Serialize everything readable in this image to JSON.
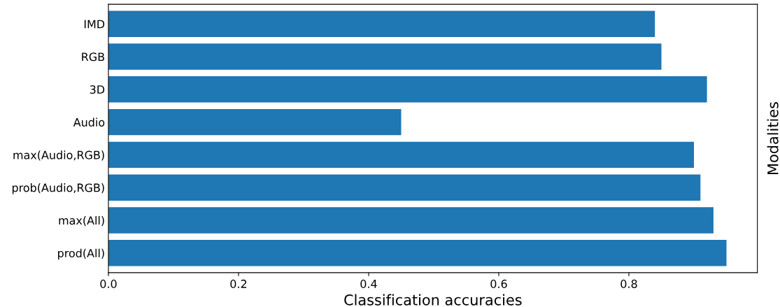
{
  "chart_data": {
    "type": "bar",
    "orientation": "horizontal",
    "categories": [
      "IMD",
      "RGB",
      "3D",
      "Audio",
      "max(Audio,RGB)",
      "prob(Audio,RGB)",
      "max(All)",
      "prod(All)"
    ],
    "values": [
      0.84,
      0.85,
      0.92,
      0.45,
      0.9,
      0.91,
      0.93,
      0.95
    ],
    "color": "#1f77b4",
    "xlim": [
      0.0,
      0.9975
    ],
    "xticks": [
      {
        "value": 0,
        "label": "0.0"
      },
      0.2,
      0.4,
      0.6,
      0.8
    ],
    "xlabel": "Classification accuracies",
    "ylabel": "Modalities",
    "grid": false
  }
}
